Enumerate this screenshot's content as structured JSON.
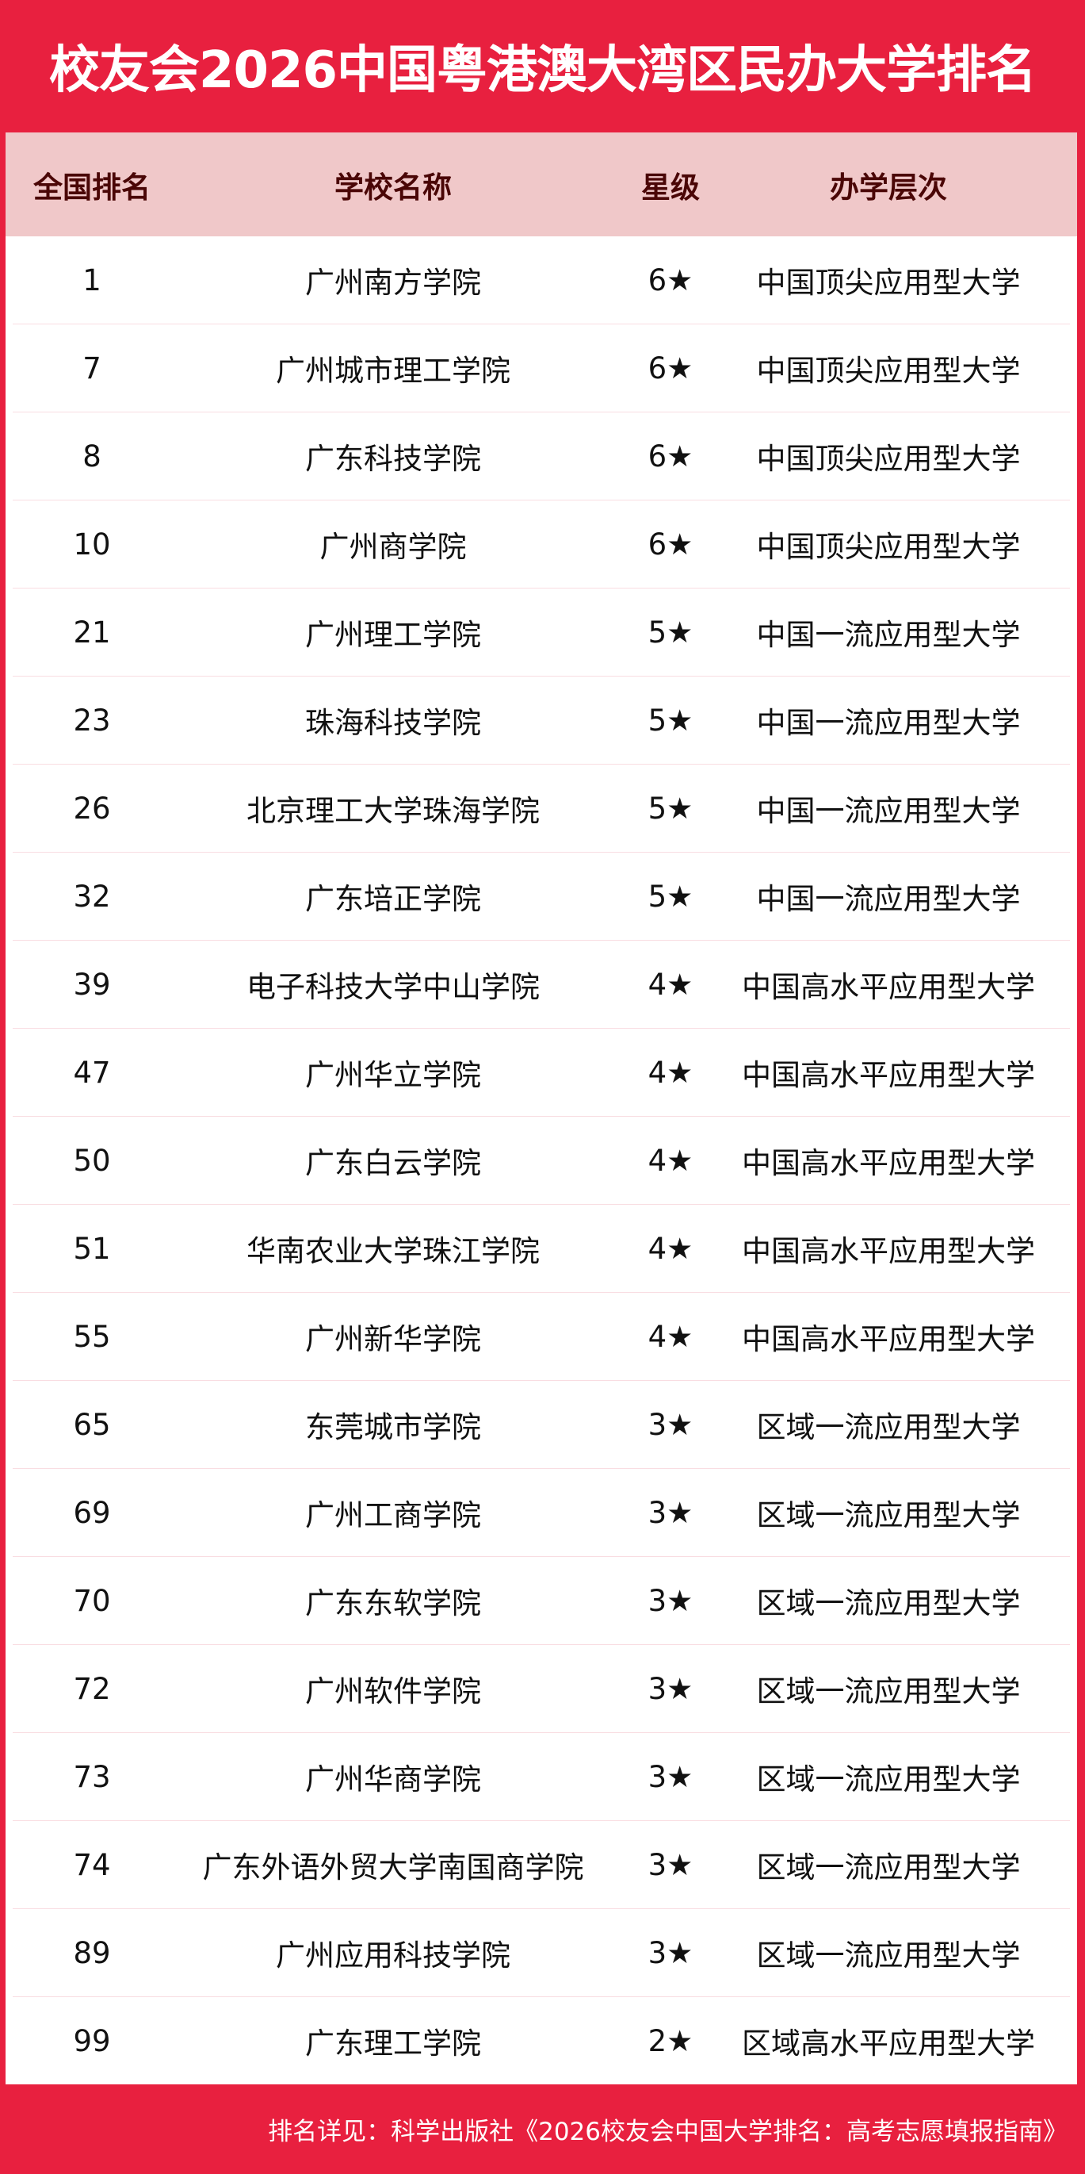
{
  "title": "校友会2026中国粤港澳大湾区民办大学排名",
  "colors": {
    "brand": "#e8203f",
    "header_bg": "#f0c8c9",
    "header_text": "#4a0606"
  },
  "columns": [
    "全国排名",
    "学校名称",
    "星级",
    "办学层次"
  ],
  "rows": [
    [
      "1",
      "广州南方学院",
      "6★",
      "中国顶尖应用型大学"
    ],
    [
      "7",
      "广州城市理工学院",
      "6★",
      "中国顶尖应用型大学"
    ],
    [
      "8",
      "广东科技学院",
      "6★",
      "中国顶尖应用型大学"
    ],
    [
      "10",
      "广州商学院",
      "6★",
      "中国顶尖应用型大学"
    ],
    [
      "21",
      "广州理工学院",
      "5★",
      "中国一流应用型大学"
    ],
    [
      "23",
      "珠海科技学院",
      "5★",
      "中国一流应用型大学"
    ],
    [
      "26",
      "北京理工大学珠海学院",
      "5★",
      "中国一流应用型大学"
    ],
    [
      "32",
      "广东培正学院",
      "5★",
      "中国一流应用型大学"
    ],
    [
      "39",
      "电子科技大学中山学院",
      "4★",
      "中国高水平应用型大学"
    ],
    [
      "47",
      "广州华立学院",
      "4★",
      "中国高水平应用型大学"
    ],
    [
      "50",
      "广东白云学院",
      "4★",
      "中国高水平应用型大学"
    ],
    [
      "51",
      "华南农业大学珠江学院",
      "4★",
      "中国高水平应用型大学"
    ],
    [
      "55",
      "广州新华学院",
      "4★",
      "中国高水平应用型大学"
    ],
    [
      "65",
      "东莞城市学院",
      "3★",
      "区域一流应用型大学"
    ],
    [
      "69",
      "广州工商学院",
      "3★",
      "区域一流应用型大学"
    ],
    [
      "70",
      "广东东软学院",
      "3★",
      "区域一流应用型大学"
    ],
    [
      "72",
      "广州软件学院",
      "3★",
      "区域一流应用型大学"
    ],
    [
      "73",
      "广州华商学院",
      "3★",
      "区域一流应用型大学"
    ],
    [
      "74",
      "广东外语外贸大学南国商学院",
      "3★",
      "区域一流应用型大学"
    ],
    [
      "89",
      "广州应用科技学院",
      "3★",
      "区域一流应用型大学"
    ],
    [
      "99",
      "广东理工学院",
      "2★",
      "区域高水平应用型大学"
    ]
  ],
  "footer": "排名详见：科学出版社《2026校友会中国大学排名：高考志愿填报指南》"
}
